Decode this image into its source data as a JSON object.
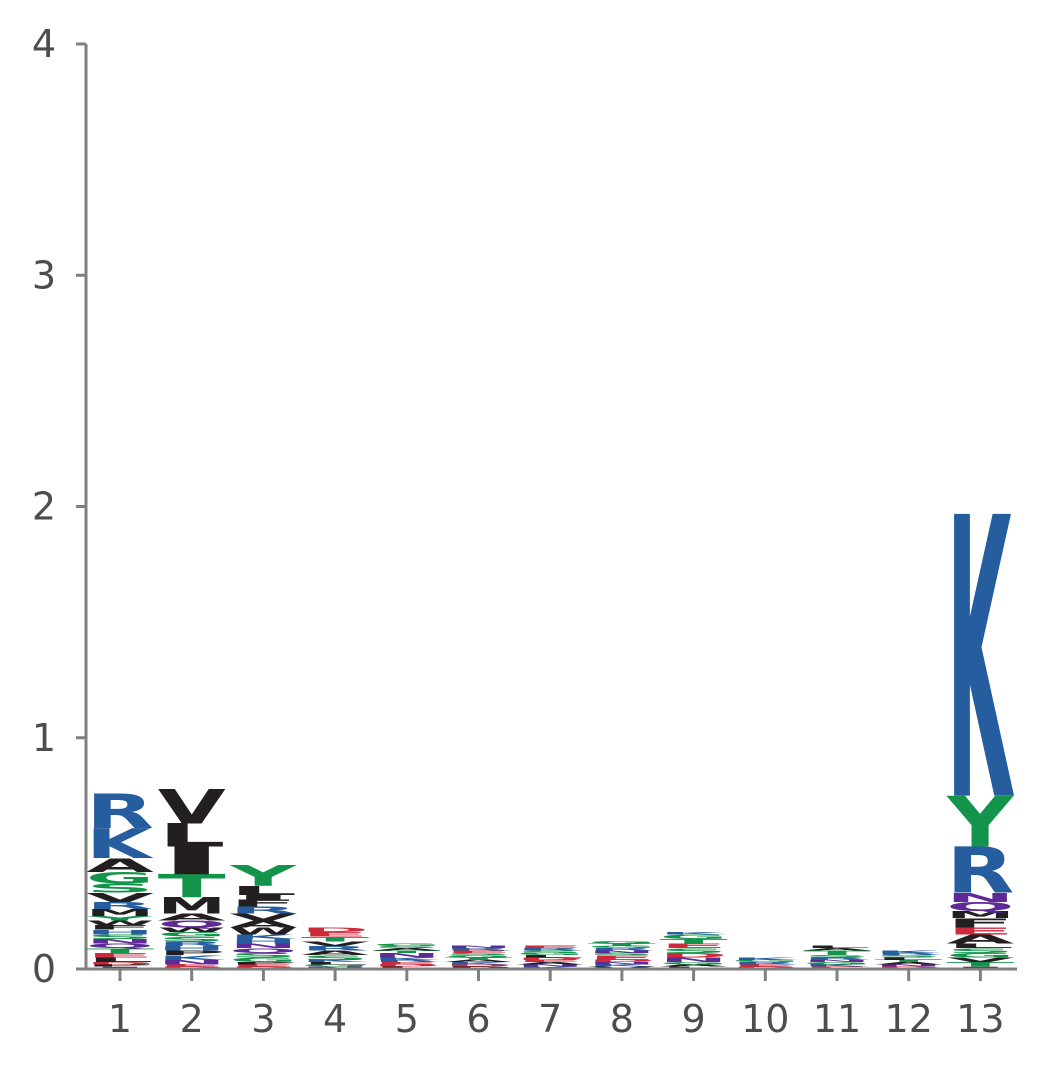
{
  "chart_data": {
    "type": "sequence-logo",
    "title": "",
    "xlabel": "",
    "ylabel": "",
    "ylim": [
      0,
      4
    ],
    "yticks": [
      "0",
      "1",
      "2",
      "3",
      "4"
    ],
    "categories": [
      "1",
      "2",
      "3",
      "4",
      "5",
      "6",
      "7",
      "8",
      "9",
      "10",
      "11",
      "12",
      "13"
    ],
    "grid": false,
    "colors": {
      "basic": "#255d9e",
      "hydrophobic": "#231f20",
      "polar": "#14944a",
      "acidic": "#cf2a3c",
      "amide": "#5d2a96",
      "axis": "#808080",
      "tick_text": "#4d4d4d"
    },
    "positions": [
      {
        "pos": 1,
        "letters": [
          {
            "aa": "I",
            "h": 0.01
          },
          {
            "aa": "P",
            "h": 0.01
          },
          {
            "aa": "D",
            "h": 0.01
          },
          {
            "aa": "L",
            "h": 0.02
          },
          {
            "aa": "E",
            "h": 0.02
          },
          {
            "aa": "T",
            "h": 0.02
          },
          {
            "aa": "Q",
            "h": 0.02
          },
          {
            "aa": "N",
            "h": 0.02
          },
          {
            "aa": "S",
            "h": 0.02
          },
          {
            "aa": "H",
            "h": 0.02
          },
          {
            "aa": "F",
            "h": 0.02
          },
          {
            "aa": "W",
            "h": 0.02
          },
          {
            "aa": "Y",
            "h": 0.02
          },
          {
            "aa": "M",
            "h": 0.03
          },
          {
            "aa": "R",
            "h": 0.03
          },
          {
            "aa": "V",
            "h": 0.04
          },
          {
            "aa": "S",
            "h": 0.04
          },
          {
            "aa": "G",
            "h": 0.05
          },
          {
            "aa": "A",
            "h": 0.06
          },
          {
            "aa": "K",
            "h": 0.13
          },
          {
            "aa": "R",
            "h": 0.15
          }
        ]
      },
      {
        "pos": 2,
        "letters": [
          {
            "aa": "D",
            "h": 0.01
          },
          {
            "aa": "E",
            "h": 0.01
          },
          {
            "aa": "N",
            "h": 0.02
          },
          {
            "aa": "K",
            "h": 0.02
          },
          {
            "aa": "P",
            "h": 0.02
          },
          {
            "aa": "H",
            "h": 0.02
          },
          {
            "aa": "R",
            "h": 0.02
          },
          {
            "aa": "S",
            "h": 0.02
          },
          {
            "aa": "G",
            "h": 0.02
          },
          {
            "aa": "W",
            "h": 0.02
          },
          {
            "aa": "Q",
            "h": 0.03
          },
          {
            "aa": "A",
            "h": 0.03
          },
          {
            "aa": "M",
            "h": 0.07
          },
          {
            "aa": "T",
            "h": 0.1
          },
          {
            "aa": "I",
            "h": 0.12
          },
          {
            "aa": "L",
            "h": 0.1
          },
          {
            "aa": "V",
            "h": 0.15
          }
        ]
      },
      {
        "pos": 3,
        "letters": [
          {
            "aa": "D",
            "h": 0.01
          },
          {
            "aa": "E",
            "h": 0.01
          },
          {
            "aa": "P",
            "h": 0.01
          },
          {
            "aa": "G",
            "h": 0.02
          },
          {
            "aa": "S",
            "h": 0.02
          },
          {
            "aa": "Q",
            "h": 0.02
          },
          {
            "aa": "N",
            "h": 0.02
          },
          {
            "aa": "H",
            "h": 0.02
          },
          {
            "aa": "K",
            "h": 0.02
          },
          {
            "aa": "W",
            "h": 0.03
          },
          {
            "aa": "A",
            "h": 0.03
          },
          {
            "aa": "V",
            "h": 0.03
          },
          {
            "aa": "R",
            "h": 0.03
          },
          {
            "aa": "F",
            "h": 0.03
          },
          {
            "aa": "I",
            "h": 0.02
          },
          {
            "aa": "L",
            "h": 0.04
          },
          {
            "aa": "Y",
            "h": 0.09
          }
        ]
      },
      {
        "pos": 4,
        "letters": [
          {
            "aa": "N",
            "h": 0.01
          },
          {
            "aa": "G",
            "h": 0.01
          },
          {
            "aa": "L",
            "h": 0.01
          },
          {
            "aa": "K",
            "h": 0.01
          },
          {
            "aa": "S",
            "h": 0.02
          },
          {
            "aa": "A",
            "h": 0.02
          },
          {
            "aa": "R",
            "h": 0.02
          },
          {
            "aa": "V",
            "h": 0.02
          },
          {
            "aa": "T",
            "h": 0.02
          },
          {
            "aa": "E",
            "h": 0.02
          },
          {
            "aa": "D",
            "h": 0.02
          }
        ]
      },
      {
        "pos": 5,
        "letters": [
          {
            "aa": "L",
            "h": 0.01
          },
          {
            "aa": "D",
            "h": 0.01
          },
          {
            "aa": "E",
            "h": 0.01
          },
          {
            "aa": "R",
            "h": 0.01
          },
          {
            "aa": "K",
            "h": 0.01
          },
          {
            "aa": "N",
            "h": 0.02
          },
          {
            "aa": "T",
            "h": 0.01
          },
          {
            "aa": "A",
            "h": 0.01
          },
          {
            "aa": "S",
            "h": 0.01
          },
          {
            "aa": "G",
            "h": 0.01
          }
        ]
      },
      {
        "pos": 6,
        "letters": [
          {
            "aa": "P",
            "h": 0.01
          },
          {
            "aa": "D",
            "h": 0.01
          },
          {
            "aa": "K",
            "h": 0.01
          },
          {
            "aa": "A",
            "h": 0.01
          },
          {
            "aa": "T",
            "h": 0.01
          },
          {
            "aa": "G",
            "h": 0.01
          },
          {
            "aa": "S",
            "h": 0.01
          },
          {
            "aa": "E",
            "h": 0.01
          },
          {
            "aa": "R",
            "h": 0.01
          },
          {
            "aa": "N",
            "h": 0.01
          }
        ]
      },
      {
        "pos": 7,
        "letters": [
          {
            "aa": "K",
            "h": 0.01
          },
          {
            "aa": "N",
            "h": 0.01
          },
          {
            "aa": "A",
            "h": 0.01
          },
          {
            "aa": "E",
            "h": 0.01
          },
          {
            "aa": "D",
            "h": 0.01
          },
          {
            "aa": "L",
            "h": 0.01
          },
          {
            "aa": "G",
            "h": 0.01
          },
          {
            "aa": "S",
            "h": 0.01
          },
          {
            "aa": "R",
            "h": 0.01
          },
          {
            "aa": "E",
            "h": 0.01
          }
        ]
      },
      {
        "pos": 8,
        "letters": [
          {
            "aa": "V",
            "h": 0.01
          },
          {
            "aa": "K",
            "h": 0.01
          },
          {
            "aa": "N",
            "h": 0.01
          },
          {
            "aa": "D",
            "h": 0.01
          },
          {
            "aa": "E",
            "h": 0.02
          },
          {
            "aa": "S",
            "h": 0.01
          },
          {
            "aa": "N",
            "h": 0.01
          },
          {
            "aa": "R",
            "h": 0.01
          },
          {
            "aa": "G",
            "h": 0.01
          },
          {
            "aa": "T",
            "h": 0.01
          },
          {
            "aa": "G",
            "h": 0.01
          }
        ]
      },
      {
        "pos": 9,
        "letters": [
          {
            "aa": "L",
            "h": 0.01
          },
          {
            "aa": "A",
            "h": 0.01
          },
          {
            "aa": "G",
            "h": 0.01
          },
          {
            "aa": "N",
            "h": 0.02
          },
          {
            "aa": "D",
            "h": 0.02
          },
          {
            "aa": "S",
            "h": 0.02
          },
          {
            "aa": "E",
            "h": 0.02
          },
          {
            "aa": "T",
            "h": 0.02
          },
          {
            "aa": "G",
            "h": 0.02
          },
          {
            "aa": "K",
            "h": 0.01
          }
        ]
      },
      {
        "pos": 10,
        "letters": [
          {
            "aa": "D",
            "h": 0.01
          },
          {
            "aa": "E",
            "h": 0.01
          },
          {
            "aa": "R",
            "h": 0.01
          },
          {
            "aa": "G",
            "h": 0.01
          },
          {
            "aa": "K",
            "h": 0.01
          }
        ]
      },
      {
        "pos": 11,
        "letters": [
          {
            "aa": "E",
            "h": 0.01
          },
          {
            "aa": "K",
            "h": 0.01
          },
          {
            "aa": "G",
            "h": 0.01
          },
          {
            "aa": "N",
            "h": 0.01
          },
          {
            "aa": "R",
            "h": 0.01
          },
          {
            "aa": "S",
            "h": 0.01
          },
          {
            "aa": "T",
            "h": 0.02
          },
          {
            "aa": "A",
            "h": 0.01
          },
          {
            "aa": "L",
            "h": 0.01
          }
        ]
      },
      {
        "pos": 12,
        "letters": [
          {
            "aa": "D",
            "h": 0.01
          },
          {
            "aa": "N",
            "h": 0.01
          },
          {
            "aa": "A",
            "h": 0.01
          },
          {
            "aa": "T",
            "h": 0.01
          },
          {
            "aa": "L",
            "h": 0.01
          },
          {
            "aa": "S",
            "h": 0.01
          },
          {
            "aa": "R",
            "h": 0.01
          },
          {
            "aa": "K",
            "h": 0.01
          }
        ]
      },
      {
        "pos": 13,
        "letters": [
          {
            "aa": "I",
            "h": 0.01
          },
          {
            "aa": "T",
            "h": 0.02
          },
          {
            "aa": "V",
            "h": 0.02
          },
          {
            "aa": "G",
            "h": 0.02
          },
          {
            "aa": "S",
            "h": 0.02
          },
          {
            "aa": "L",
            "h": 0.02
          },
          {
            "aa": "A",
            "h": 0.04
          },
          {
            "aa": "E",
            "h": 0.03
          },
          {
            "aa": "F",
            "h": 0.04
          },
          {
            "aa": "M",
            "h": 0.03
          },
          {
            "aa": "Q",
            "h": 0.04
          },
          {
            "aa": "N",
            "h": 0.04
          },
          {
            "aa": "R",
            "h": 0.2
          },
          {
            "aa": "Y",
            "h": 0.22
          },
          {
            "aa": "K",
            "h": 1.22
          }
        ]
      }
    ]
  }
}
